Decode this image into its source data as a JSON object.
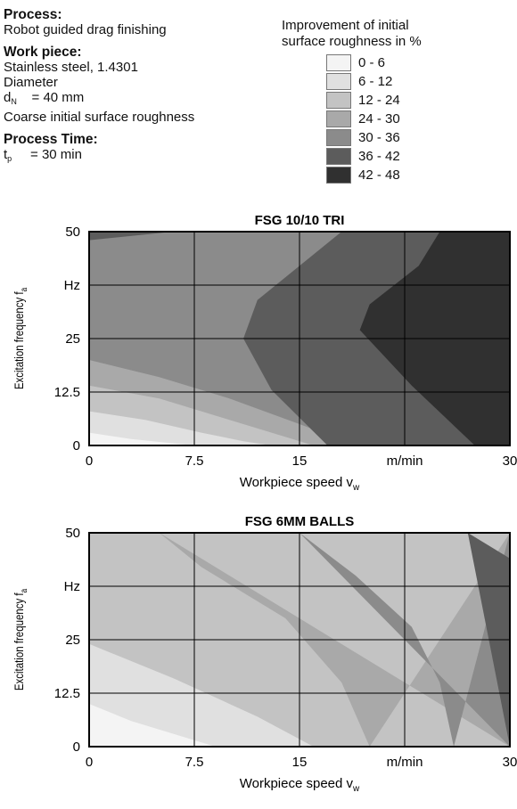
{
  "header": {
    "process_heading": "Process:",
    "process_value": "Robot guided drag finishing",
    "workpiece_heading": "Work piece:",
    "material": "Stainless steel, 1.4301",
    "diameter_label": "Diameter",
    "diameter_sym": "d",
    "diameter_sub": "N",
    "diameter_value": "= 40  mm",
    "roughness_note": "Coarse initial surface roughness",
    "time_heading": "Process Time:",
    "time_sym": "t",
    "time_sub": "p",
    "time_value": "= 30  min"
  },
  "legend": {
    "title_line1": "Improvement of initial",
    "title_line2": "surface roughness in %",
    "items": [
      {
        "label": "0 - 6",
        "color": "#f4f4f4"
      },
      {
        "label": "6 - 12",
        "color": "#e0e0e0"
      },
      {
        "label": "12 - 24",
        "color": "#c3c3c3"
      },
      {
        "label": "24 - 30",
        "color": "#a9a9a9"
      },
      {
        "label": "30 - 36",
        "color": "#8b8b8b"
      },
      {
        "label": "36 - 42",
        "color": "#5c5c5c"
      },
      {
        "label": "42 - 48",
        "color": "#303030"
      }
    ]
  },
  "chart_data": [
    {
      "type": "heatmap",
      "title": "FSG 10/10 TRI",
      "xlabel": "Workpiece speed v",
      "xlabel_sub": "w",
      "ylabel": "Excitation frequency f",
      "ylabel_sub": "a",
      "xlim": [
        0,
        30
      ],
      "ylim": [
        0,
        50
      ],
      "x_ticks": [
        "0",
        "7.5",
        "15",
        "m/min",
        "30"
      ],
      "y_ticks": [
        "0",
        "12.5",
        "25",
        "Hz",
        "50"
      ],
      "grid": true,
      "contour_levels": [
        6,
        12,
        24,
        30,
        36,
        42
      ],
      "boundaries": [
        {
          "level": 6,
          "points": [
            [
              0,
              3
            ],
            [
              3,
              1.5
            ],
            [
              6,
              0.5
            ],
            [
              7.5,
              0
            ]
          ]
        },
        {
          "level": 12,
          "points": [
            [
              0,
              8
            ],
            [
              4,
              6
            ],
            [
              8,
              3
            ],
            [
              11,
              1
            ],
            [
              13,
              0
            ]
          ]
        },
        {
          "level": 24,
          "points": [
            [
              0,
              14
            ],
            [
              5,
              11
            ],
            [
              10,
              6
            ],
            [
              14,
              2
            ],
            [
              16,
              0
            ]
          ]
        },
        {
          "level": 30,
          "points": [
            [
              0,
              20
            ],
            [
              5,
              16
            ],
            [
              10,
              11
            ],
            [
              15,
              5
            ],
            [
              19,
              0
            ]
          ]
        },
        {
          "level": 36,
          "points": [
            [
              0,
              48
            ],
            [
              6,
              50
            ]
          ],
          "band": "top-left"
        },
        {
          "level": 36,
          "points": [
            [
              17,
              0
            ],
            [
              13,
              13
            ],
            [
              11,
              25
            ],
            [
              12,
              34
            ],
            [
              15,
              42
            ],
            [
              18,
              50
            ]
          ]
        },
        {
          "level": 42,
          "points": [
            [
              27.5,
              0
            ],
            [
              23,
              14
            ],
            [
              19.3,
              27
            ],
            [
              20,
              33
            ],
            [
              23.5,
              42
            ],
            [
              25,
              50
            ]
          ]
        }
      ]
    },
    {
      "type": "heatmap",
      "title": "FSG 6MM BALLS",
      "xlabel": "Workpiece speed v",
      "xlabel_sub": "w",
      "ylabel": "Excitation frequency f",
      "ylabel_sub": "a",
      "xlim": [
        0,
        30
      ],
      "ylim": [
        0,
        50
      ],
      "x_ticks": [
        "0",
        "7.5",
        "15",
        "m/min",
        "30"
      ],
      "y_ticks": [
        "0",
        "12.5",
        "25",
        "Hz",
        "50"
      ],
      "grid": true,
      "contour_levels": [
        6,
        12,
        24,
        30,
        36
      ],
      "boundaries": [
        {
          "level": 6,
          "points": [
            [
              0,
              10
            ],
            [
              3,
              6
            ],
            [
              6,
              3
            ],
            [
              9,
              0
            ]
          ]
        },
        {
          "level": 12,
          "points": [
            [
              0,
              24
            ],
            [
              6,
              16
            ],
            [
              12,
              7
            ],
            [
              16,
              0
            ]
          ]
        },
        {
          "level": 24,
          "points": [
            [
              5,
              50
            ],
            [
              8,
              42
            ],
            [
              14,
              30
            ],
            [
              18,
              15
            ],
            [
              20,
              0
            ]
          ]
        },
        {
          "level": 30,
          "points": [
            [
              15,
              50
            ],
            [
              19,
              40
            ],
            [
              23,
              28
            ],
            [
              25,
              15
            ],
            [
              26,
              0
            ]
          ]
        },
        {
          "level": 36,
          "points": [
            [
              27,
              50
            ],
            [
              30,
              44
            ]
          ]
        }
      ]
    }
  ]
}
